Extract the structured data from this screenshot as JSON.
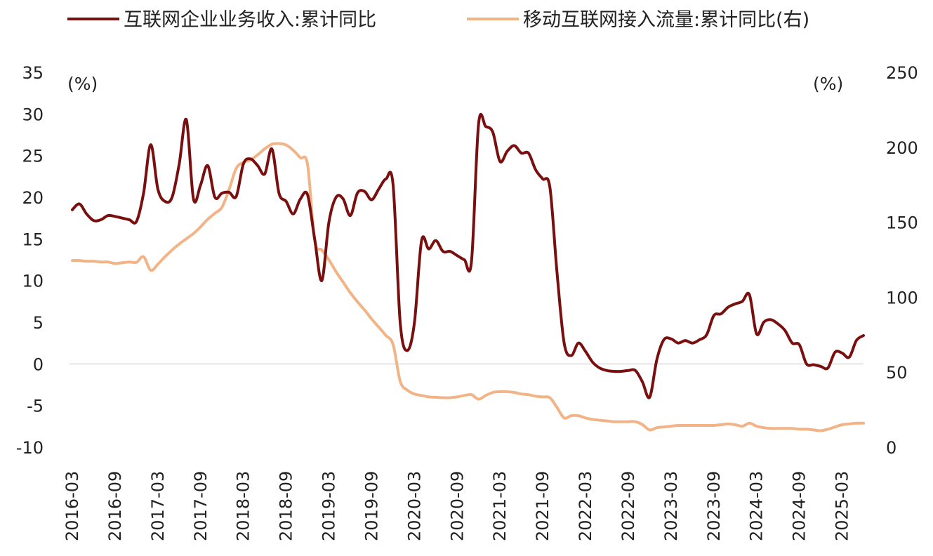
{
  "chart_data": {
    "type": "line",
    "title": "",
    "legend": {
      "placement": "top"
    },
    "left_axis": {
      "unit": "(%)",
      "ylim": [
        -10,
        35
      ],
      "ticks": [
        35,
        30,
        25,
        20,
        15,
        10,
        5,
        0,
        -5,
        -10
      ]
    },
    "right_axis": {
      "unit": "(%)",
      "ylim": [
        0,
        250
      ],
      "ticks": [
        250,
        200,
        150,
        100,
        50,
        0
      ]
    },
    "x_ticks": [
      "2016-03",
      "2016-09",
      "2017-03",
      "2017-09",
      "2018-03",
      "2018-09",
      "2019-03",
      "2019-09",
      "2020-03",
      "2020-09",
      "2021-03",
      "2021-09",
      "2022-03",
      "2022-09",
      "2023-03",
      "2023-09",
      "2024-03",
      "2024-09",
      "2025-03"
    ],
    "zero_gridline": true,
    "series": [
      {
        "name": "互联网企业业务收入:累计同比",
        "axis": "left",
        "color": "#7a0f0f",
        "points": [
          [
            "2016-03",
            18.5
          ],
          [
            "2016-04",
            19.2
          ],
          [
            "2016-05",
            18.0
          ],
          [
            "2016-06",
            17.2
          ],
          [
            "2016-07",
            17.3
          ],
          [
            "2016-08",
            17.8
          ],
          [
            "2016-09",
            17.7
          ],
          [
            "2016-10",
            17.5
          ],
          [
            "2016-11",
            17.3
          ],
          [
            "2016-12",
            17.1
          ],
          [
            "2017-01",
            20.5
          ],
          [
            "2017-02",
            26.3
          ],
          [
            "2017-03",
            21.0
          ],
          [
            "2017-04",
            19.5
          ],
          [
            "2017-05",
            20.0
          ],
          [
            "2017-06",
            24.0
          ],
          [
            "2017-07",
            29.3
          ],
          [
            "2017-08",
            19.8
          ],
          [
            "2017-09",
            21.5
          ],
          [
            "2017-10",
            23.8
          ],
          [
            "2017-11",
            20.0
          ],
          [
            "2017-12",
            20.5
          ],
          [
            "2017-13",
            20.6
          ],
          [
            "2018-02",
            20.1
          ],
          [
            "2018-03",
            24.0
          ],
          [
            "2018-04",
            24.6
          ],
          [
            "2018-05",
            23.8
          ],
          [
            "2018-06",
            22.8
          ],
          [
            "2018-07",
            25.8
          ],
          [
            "2018-08",
            20.5
          ],
          [
            "2018-09",
            19.5
          ],
          [
            "2018-10",
            18.0
          ],
          [
            "2018-11",
            19.8
          ],
          [
            "2018-12",
            20.3
          ],
          [
            "2019-01",
            15.0
          ],
          [
            "2019-02",
            10.0
          ],
          [
            "2019-03",
            17.0
          ],
          [
            "2019-04",
            20.0
          ],
          [
            "2019-05",
            19.8
          ],
          [
            "2019-06",
            17.8
          ],
          [
            "2019-07",
            20.5
          ],
          [
            "2019-08",
            20.7
          ],
          [
            "2019-09",
            19.7
          ],
          [
            "2019-10",
            21.0
          ],
          [
            "2019-11",
            22.2
          ],
          [
            "2019-12",
            21.5
          ],
          [
            "2020-01",
            5.0
          ],
          [
            "2020-02",
            1.6
          ],
          [
            "2020-03",
            5.0
          ],
          [
            "2020-04",
            14.8
          ],
          [
            "2020-05",
            13.8
          ],
          [
            "2020-06",
            14.8
          ],
          [
            "2020-07",
            13.5
          ],
          [
            "2020-08",
            13.5
          ],
          [
            "2020-09",
            13.0
          ],
          [
            "2020-10",
            12.5
          ],
          [
            "2020-11",
            12.3
          ],
          [
            "2020-12",
            28.8
          ],
          [
            "2021-01",
            28.5
          ],
          [
            "2021-02",
            27.8
          ],
          [
            "2021-03",
            24.3
          ],
          [
            "2021-04",
            25.5
          ],
          [
            "2021-05",
            26.2
          ],
          [
            "2021-06",
            25.3
          ],
          [
            "2021-07",
            25.3
          ],
          [
            "2021-08",
            23.3
          ],
          [
            "2021-09",
            22.2
          ],
          [
            "2021-10",
            21.2
          ],
          [
            "2021-11",
            11.0
          ],
          [
            "2021-12",
            2.5
          ],
          [
            "2022-01",
            1.0
          ],
          [
            "2022-02",
            2.5
          ],
          [
            "2022-03",
            1.5
          ],
          [
            "2022-04",
            0.2
          ],
          [
            "2022-05",
            -0.5
          ],
          [
            "2022-06",
            -0.8
          ],
          [
            "2022-07",
            -0.9
          ],
          [
            "2022-08",
            -0.9
          ],
          [
            "2022-09",
            -0.8
          ],
          [
            "2022-10",
            -0.8
          ],
          [
            "2022-11",
            -2.2
          ],
          [
            "2022-12",
            -4.0
          ],
          [
            "2023-01",
            0.5
          ],
          [
            "2023-02",
            2.9
          ],
          [
            "2023-03",
            3.0
          ],
          [
            "2023-04",
            2.5
          ],
          [
            "2023-05",
            2.8
          ],
          [
            "2023-06",
            2.5
          ],
          [
            "2023-07",
            2.9
          ],
          [
            "2023-08",
            3.5
          ],
          [
            "2023-09",
            5.8
          ],
          [
            "2023-10",
            6.0
          ],
          [
            "2023-11",
            6.8
          ],
          [
            "2023-12",
            7.2
          ],
          [
            "2024-01",
            7.5
          ],
          [
            "2024-02",
            8.3
          ],
          [
            "2024-03",
            3.6
          ],
          [
            "2024-04",
            5.0
          ],
          [
            "2024-05",
            5.3
          ],
          [
            "2024-06",
            4.8
          ],
          [
            "2024-07",
            4.0
          ],
          [
            "2024-08",
            2.5
          ],
          [
            "2024-09",
            2.3
          ],
          [
            "2024-10",
            0.0
          ],
          [
            "2024-11",
            -0.1
          ],
          [
            "2024-12",
            -0.3
          ],
          [
            "2025-01",
            -0.5
          ],
          [
            "2025-02",
            1.4
          ],
          [
            "2025-03",
            1.3
          ],
          [
            "2025-04",
            0.8
          ],
          [
            "2025-05",
            2.8
          ],
          [
            "2025-06",
            3.4
          ]
        ]
      },
      {
        "name": "移动互联网接入流量:累计同比(右)",
        "axis": "right",
        "color": "#f2b487",
        "points": [
          [
            "2016-03",
            124.5
          ],
          [
            "2016-04",
            124.5
          ],
          [
            "2016-05",
            124.0
          ],
          [
            "2016-06",
            124.0
          ],
          [
            "2016-07",
            123.5
          ],
          [
            "2016-08",
            123.5
          ],
          [
            "2016-09",
            122.5
          ],
          [
            "2016-10",
            123.0
          ],
          [
            "2016-11",
            123.5
          ],
          [
            "2016-12",
            123.3
          ],
          [
            "2017-01",
            127.0
          ],
          [
            "2017-02",
            118.0
          ],
          [
            "2017-03",
            122.0
          ],
          [
            "2017-04",
            127.0
          ],
          [
            "2017-05",
            131.5
          ],
          [
            "2017-06",
            135.5
          ],
          [
            "2017-07",
            139.0
          ],
          [
            "2017-08",
            142.5
          ],
          [
            "2017-09",
            147.0
          ],
          [
            "2017-10",
            152.0
          ],
          [
            "2017-11",
            156.0
          ],
          [
            "2017-12",
            160.0
          ],
          [
            "2017-13",
            172.0
          ],
          [
            "2018-02",
            186.0
          ],
          [
            "2018-03",
            190.0
          ],
          [
            "2018-04",
            191.5
          ],
          [
            "2018-05",
            195.0
          ],
          [
            "2018-06",
            199.0
          ],
          [
            "2018-07",
            202.0
          ],
          [
            "2018-08",
            202.5
          ],
          [
            "2018-09",
            201.5
          ],
          [
            "2018-10",
            198.0
          ],
          [
            "2018-11",
            193.0
          ],
          [
            "2018-12",
            188.5
          ],
          [
            "2019-01",
            138.0
          ],
          [
            "2019-02",
            131.5
          ],
          [
            "2019-03",
            125.0
          ],
          [
            "2019-04",
            117.0
          ],
          [
            "2019-05",
            110.0
          ],
          [
            "2019-06",
            103.0
          ],
          [
            "2019-07",
            97.0
          ],
          [
            "2019-08",
            91.5
          ],
          [
            "2019-09",
            85.5
          ],
          [
            "2019-10",
            80.0
          ],
          [
            "2019-11",
            74.5
          ],
          [
            "2019-12",
            68.5
          ],
          [
            "2020-01",
            44.0
          ],
          [
            "2020-02",
            38.0
          ],
          [
            "2020-03",
            35.5
          ],
          [
            "2020-04",
            34.5
          ],
          [
            "2020-05",
            33.5
          ],
          [
            "2020-06",
            33.3
          ],
          [
            "2020-07",
            33.0
          ],
          [
            "2020-08",
            33.0
          ],
          [
            "2020-09",
            33.5
          ],
          [
            "2020-10",
            34.5
          ],
          [
            "2020-11",
            35.0
          ],
          [
            "2020-12",
            32.0
          ],
          [
            "2021-01",
            34.5
          ],
          [
            "2021-02",
            36.5
          ],
          [
            "2021-03",
            37.0
          ],
          [
            "2021-04",
            37.0
          ],
          [
            "2021-05",
            36.5
          ],
          [
            "2021-06",
            35.5
          ],
          [
            "2021-07",
            35.0
          ],
          [
            "2021-08",
            34.0
          ],
          [
            "2021-09",
            33.5
          ],
          [
            "2021-10",
            33.0
          ],
          [
            "2021-11",
            26.5
          ],
          [
            "2021-12",
            19.5
          ],
          [
            "2022-01",
            21.0
          ],
          [
            "2022-02",
            21.0
          ],
          [
            "2022-03",
            19.5
          ],
          [
            "2022-04",
            18.5
          ],
          [
            "2022-05",
            18.0
          ],
          [
            "2022-06",
            17.5
          ],
          [
            "2022-07",
            17.0
          ],
          [
            "2022-08",
            17.0
          ],
          [
            "2022-09",
            17.0
          ],
          [
            "2022-10",
            17.0
          ],
          [
            "2022-11",
            15.0
          ],
          [
            "2022-12",
            11.5
          ],
          [
            "2023-01",
            13.0
          ],
          [
            "2023-02",
            13.5
          ],
          [
            "2023-03",
            14.0
          ],
          [
            "2023-04",
            14.5
          ],
          [
            "2023-05",
            14.5
          ],
          [
            "2023-06",
            14.5
          ],
          [
            "2023-07",
            14.5
          ],
          [
            "2023-08",
            14.5
          ],
          [
            "2023-09",
            14.5
          ],
          [
            "2023-10",
            15.0
          ],
          [
            "2023-11",
            15.5
          ],
          [
            "2023-12",
            15.0
          ],
          [
            "2024-01",
            14.0
          ],
          [
            "2024-02",
            16.0
          ],
          [
            "2024-03",
            14.0
          ],
          [
            "2024-04",
            13.0
          ],
          [
            "2024-05",
            12.5
          ],
          [
            "2024-06",
            12.5
          ],
          [
            "2024-07",
            12.5
          ],
          [
            "2024-08",
            12.5
          ],
          [
            "2024-09",
            12.0
          ],
          [
            "2024-10",
            12.0
          ],
          [
            "2024-11",
            11.5
          ],
          [
            "2024-12",
            11.0
          ],
          [
            "2025-01",
            12.0
          ],
          [
            "2025-02",
            13.5
          ],
          [
            "2025-03",
            15.0
          ],
          [
            "2025-04",
            15.5
          ],
          [
            "2025-05",
            16.0
          ],
          [
            "2025-06",
            16.0
          ]
        ]
      }
    ]
  }
}
